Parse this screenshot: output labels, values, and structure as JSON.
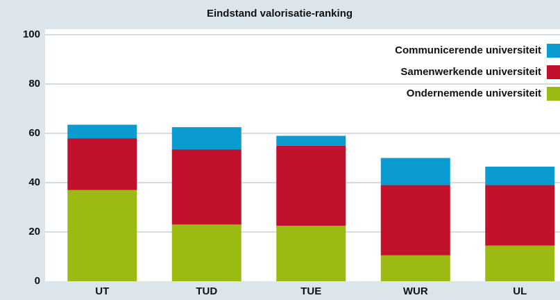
{
  "chart_data": {
    "type": "stacked_bar",
    "title": "Eindstand valorisatie-ranking",
    "categories": [
      "UT",
      "TUD",
      "TUE",
      "WUR",
      "UL"
    ],
    "series": [
      {
        "name": "Ondernemende universiteit",
        "color": "#9bbb12",
        "values": [
          37,
          23,
          22.5,
          10.5,
          14.5
        ]
      },
      {
        "name": "Samenwerkende universiteit",
        "color": "#c1112c",
        "values": [
          21,
          30.5,
          32.5,
          28.5,
          24.5
        ]
      },
      {
        "name": "Communicerende universiteit",
        "color": "#0a9bd0",
        "values": [
          5.5,
          9,
          4,
          11,
          7.5
        ]
      }
    ],
    "ylim": [
      0,
      100
    ],
    "yticks": [
      0,
      20,
      40,
      60,
      80,
      100
    ],
    "grid": true,
    "legend": "top-right"
  }
}
